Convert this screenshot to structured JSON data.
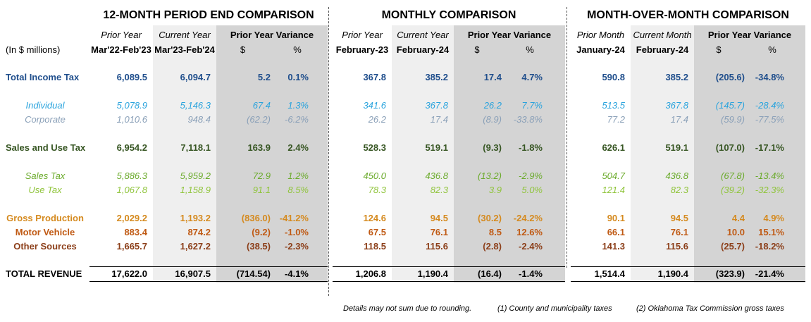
{
  "sections": [
    {
      "title": "12-MONTH PERIOD END COMPARISON",
      "col1_top": "Prior Year",
      "col1_bot": "Mar'22-Feb'23",
      "col2_top": "Current Year",
      "col2_bot": "Mar'23-Feb'24",
      "var_title": "Prior Year Variance",
      "dollar": "$",
      "pct": "%"
    },
    {
      "title": "MONTHLY COMPARISON",
      "col1_top": "Prior Year",
      "col1_bot": "February-23",
      "col2_top": "Current Year",
      "col2_bot": "February-24",
      "var_title": "Prior Year Variance",
      "dollar": "$",
      "pct": "%"
    },
    {
      "title": "MONTH-OVER-MONTH COMPARISON",
      "col1_top": "Prior Month",
      "col1_bot": "January-24",
      "col2_top": "Current Month",
      "col2_bot": "February-24",
      "var_title": "Prior Year Variance",
      "dollar": "$",
      "pct": "%"
    }
  ],
  "units_label": "(In $ millions)",
  "colors": {
    "blue": "#1f4e8c",
    "lightblue": "#29a3dd",
    "gray": "#8aa0b8",
    "green": "#375623",
    "lightgreen": "#6aaa2a",
    "lime": "#8fc43a",
    "orange": "#d58a1f",
    "darkorange": "#c05a14",
    "brown": "#8c3f1a",
    "black": "#000000"
  },
  "rows": [
    {
      "label": "Total Income Tax",
      "style": "main",
      "color": "blue",
      "align": "left",
      "values": [
        "6,089.5",
        "6,094.7",
        "5.2",
        "0.1%",
        "367.8",
        "385.2",
        "17.4",
        "4.7%",
        "590.8",
        "385.2",
        "(205.6)",
        "-34.8%"
      ]
    },
    {
      "label": "Individual",
      "style": "sub",
      "color": "lightblue",
      "align": "center",
      "values": [
        "5,078.9",
        "5,146.3",
        "67.4",
        "1.3%",
        "341.6",
        "367.8",
        "26.2",
        "7.7%",
        "513.5",
        "367.8",
        "(145.7)",
        "-28.4%"
      ]
    },
    {
      "label": "Corporate",
      "style": "sub",
      "color": "gray",
      "align": "center",
      "values": [
        "1,010.6",
        "948.4",
        "(62.2)",
        "-6.2%",
        "26.2",
        "17.4",
        "(8.9)",
        "-33.8%",
        "77.2",
        "17.4",
        "(59.9)",
        "-77.5%"
      ]
    },
    {
      "label": "Sales and Use Tax",
      "style": "main",
      "color": "green",
      "align": "left",
      "values": [
        "6,954.2",
        "7,118.1",
        "163.9",
        "2.4%",
        "528.3",
        "519.1",
        "(9.3)",
        "-1.8%",
        "626.1",
        "519.1",
        "(107.0)",
        "-17.1%"
      ]
    },
    {
      "label": "Sales Tax",
      "style": "sub",
      "color": "lightgreen",
      "align": "center",
      "values": [
        "5,886.3",
        "5,959.2",
        "72.9",
        "1.2%",
        "450.0",
        "436.8",
        "(13.2)",
        "-2.9%",
        "504.7",
        "436.8",
        "(67.8)",
        "-13.4%"
      ]
    },
    {
      "label": "Use Tax",
      "style": "sub",
      "color": "lime",
      "align": "center",
      "values": [
        "1,067.8",
        "1,158.9",
        "91.1",
        "8.5%",
        "78.3",
        "82.3",
        "3.9",
        "5.0%",
        "121.4",
        "82.3",
        "(39.2)",
        "-32.3%"
      ]
    },
    {
      "label": "Gross Production",
      "style": "main",
      "color": "orange",
      "align": "center",
      "values": [
        "2,029.2",
        "1,193.2",
        "(836.0)",
        "-41.2%",
        "124.6",
        "94.5",
        "(30.2)",
        "-24.2%",
        "90.1",
        "94.5",
        "4.4",
        "4.9%"
      ]
    },
    {
      "label": "Motor Vehicle",
      "style": "main",
      "color": "darkorange",
      "align": "center",
      "values": [
        "883.4",
        "874.2",
        "(9.2)",
        "-1.0%",
        "67.5",
        "76.1",
        "8.5",
        "12.6%",
        "66.1",
        "76.1",
        "10.0",
        "15.1%"
      ]
    },
    {
      "label": "Other Sources",
      "style": "main",
      "color": "brown",
      "align": "center",
      "values": [
        "1,665.7",
        "1,627.2",
        "(38.5)",
        "-2.3%",
        "118.5",
        "115.6",
        "(2.8)",
        "-2.4%",
        "141.3",
        "115.6",
        "(25.7)",
        "-18.2%"
      ]
    },
    {
      "label": "TOTAL REVENUE",
      "style": "main",
      "color": "black",
      "align": "left",
      "values": [
        "17,622.0",
        "16,907.5",
        "(714.54)",
        "-4.1%",
        "1,206.8",
        "1,190.4",
        "(16.4)",
        "-1.4%",
        "1,514.4",
        "1,190.4",
        "(323.9)",
        "-21.4%"
      ]
    }
  ],
  "footnotes": {
    "rounding": "Details may not sum due to rounding.",
    "note1": "(1) County and municipality taxes",
    "note2": "(2) Oklahoma Tax Commission gross taxes"
  }
}
